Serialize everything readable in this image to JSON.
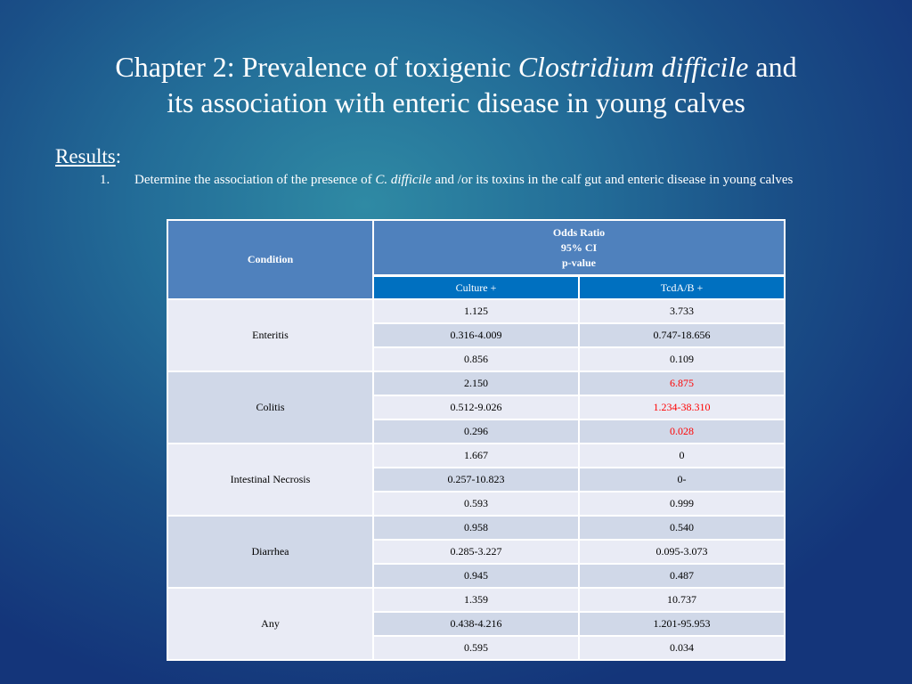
{
  "slide": {
    "title_line1_prefix": "Chapter 2: Prevalence of toxigenic ",
    "title_line1_italic": "Clostridium difficile",
    "title_line1_suffix": " and",
    "title_line2": "its association with enteric disease in young calves",
    "results_label": "Results",
    "results_colon": ":",
    "item_number": "1.",
    "item_text_prefix": "Determine the association of the presence of ",
    "item_text_italic": "C. difficile",
    "item_text_suffix": " and /or its toxins in the calf gut and enteric disease in young calves"
  },
  "table": {
    "condition_header": "Condition",
    "odds_header_lines": [
      "Odds Ratio",
      "95% CI",
      "p-value"
    ],
    "column_headers": [
      "Culture +",
      "TcdA/B +"
    ],
    "highlight_color": "#ff0000",
    "groups": [
      {
        "condition": "Enteritis",
        "rows": [
          [
            "1.125",
            "3.733"
          ],
          [
            "0.316-4.009",
            "0.747-18.656"
          ],
          [
            "0.856",
            "0.109"
          ]
        ]
      },
      {
        "condition": "Colitis",
        "rows": [
          [
            "2.150",
            "6.875"
          ],
          [
            "0.512-9.026",
            "1.234-38.310"
          ],
          [
            "0.296",
            "0.028"
          ]
        ]
      },
      {
        "condition": "Intestinal Necrosis",
        "rows": [
          [
            "1.667",
            "0"
          ],
          [
            "0.257-10.823",
            "0-"
          ],
          [
            "0.593",
            "0.999"
          ]
        ]
      },
      {
        "condition": "Diarrhea",
        "rows": [
          [
            "0.958",
            "0.540"
          ],
          [
            "0.285-3.227",
            "0.095-3.073"
          ],
          [
            "0.945",
            "0.487"
          ]
        ]
      },
      {
        "condition": "Any",
        "rows": [
          [
            "1.359",
            "10.737"
          ],
          [
            "0.438-4.216",
            "1.201-95.953"
          ],
          [
            "0.595",
            "0.034"
          ]
        ]
      }
    ]
  }
}
